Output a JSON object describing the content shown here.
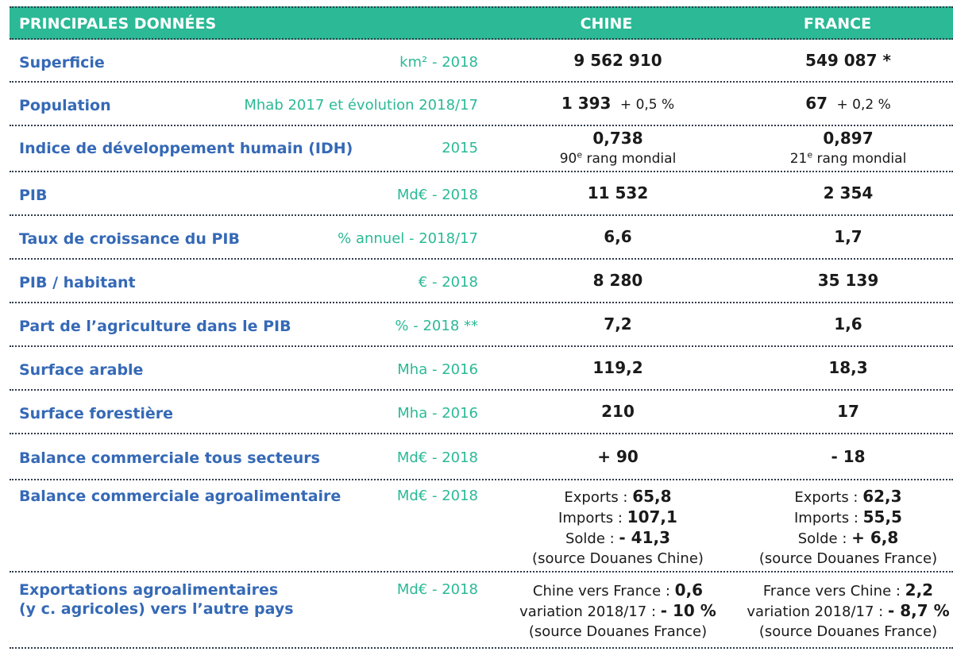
{
  "header": {
    "label": "PRINCIPALES DONNÉES",
    "chine": "CHINE",
    "france": "FRANCE"
  },
  "rows": [
    {
      "label": "Superficie",
      "unit": "km² - 2018",
      "chine": "9 562 910",
      "france": "549 087 *"
    },
    {
      "label": "Population",
      "unit": "Mhab 2017 et évolution 2018/17",
      "chine": "1 393",
      "chine_evol": "+ 0,5 %",
      "france": "67",
      "france_evol": "+ 0,2 %"
    },
    {
      "label": "Indice de développement humain (IDH)",
      "unit": "2015",
      "chine": "0,738",
      "chine_rank_num": "90",
      "chine_rank_sup": "e",
      "chine_rank_text": " rang mondial",
      "france": "0,897",
      "france_rank_num": "21",
      "france_rank_sup": "e",
      "france_rank_text": " rang mondial"
    },
    {
      "label": "PIB",
      "unit": "Md€ - 2018",
      "chine": "11 532",
      "france": "2 354"
    },
    {
      "label": "Taux de croissance du PIB",
      "unit": "% annuel - 2018/17",
      "chine": "6,6",
      "france": "1,7"
    },
    {
      "label": "PIB / habitant",
      "unit": "€ - 2018",
      "chine": "8 280",
      "france": "35 139"
    },
    {
      "label": "Part de l’agriculture dans le PIB",
      "unit": "% - 2018 **",
      "chine": "7,2",
      "france": "1,6"
    },
    {
      "label": "Surface arable",
      "unit": "Mha  - 2016",
      "chine": "119,2",
      "france": "18,3"
    },
    {
      "label": "Surface forestière",
      "unit": "Mha - 2016",
      "chine": "210",
      "france": "17"
    },
    {
      "label": "Balance commerciale tous secteurs",
      "unit": "Md€ - 2018",
      "chine": "+ 90",
      "france": "- 18"
    },
    {
      "label": "Balance commerciale  agroalimentaire",
      "unit": "Md€ - 2018",
      "chine": {
        "exports_label": "Exports : ",
        "exports": "65,8",
        "imports_label": "Imports : ",
        "imports": "107,1",
        "solde_label": "Solde : ",
        "solde": "- 41,3",
        "source": "(source Douanes Chine)"
      },
      "france": {
        "exports_label": "Exports : ",
        "exports": "62,3",
        "imports_label": "Imports : ",
        "imports": "55,5",
        "solde_label": "Solde : ",
        "solde": "+ 6,8",
        "source": "(source Douanes France)"
      }
    },
    {
      "label_line1": "Exportations agroalimentaires",
      "label_line2": "(y c. agricoles) vers l’autre pays",
      "unit": "Md€ - 2018",
      "chine": {
        "line1_label": "Chine vers France : ",
        "line1_value": "0,6",
        "line2_label": "variation 2018/17 : ",
        "line2_value": "- 10 %",
        "source": "(source Douanes France)"
      },
      "france": {
        "line1_label": "France vers Chine : ",
        "line1_value": "2,2",
        "line2_label": "variation 2018/17 : ",
        "line2_value": "- 8,7 %",
        "source": "(source Douanes France)"
      }
    }
  ],
  "colors": {
    "header_bg": "#2bb996",
    "label": "#3569b6",
    "unit": "#2bb996",
    "value": "#1a1a1a"
  }
}
